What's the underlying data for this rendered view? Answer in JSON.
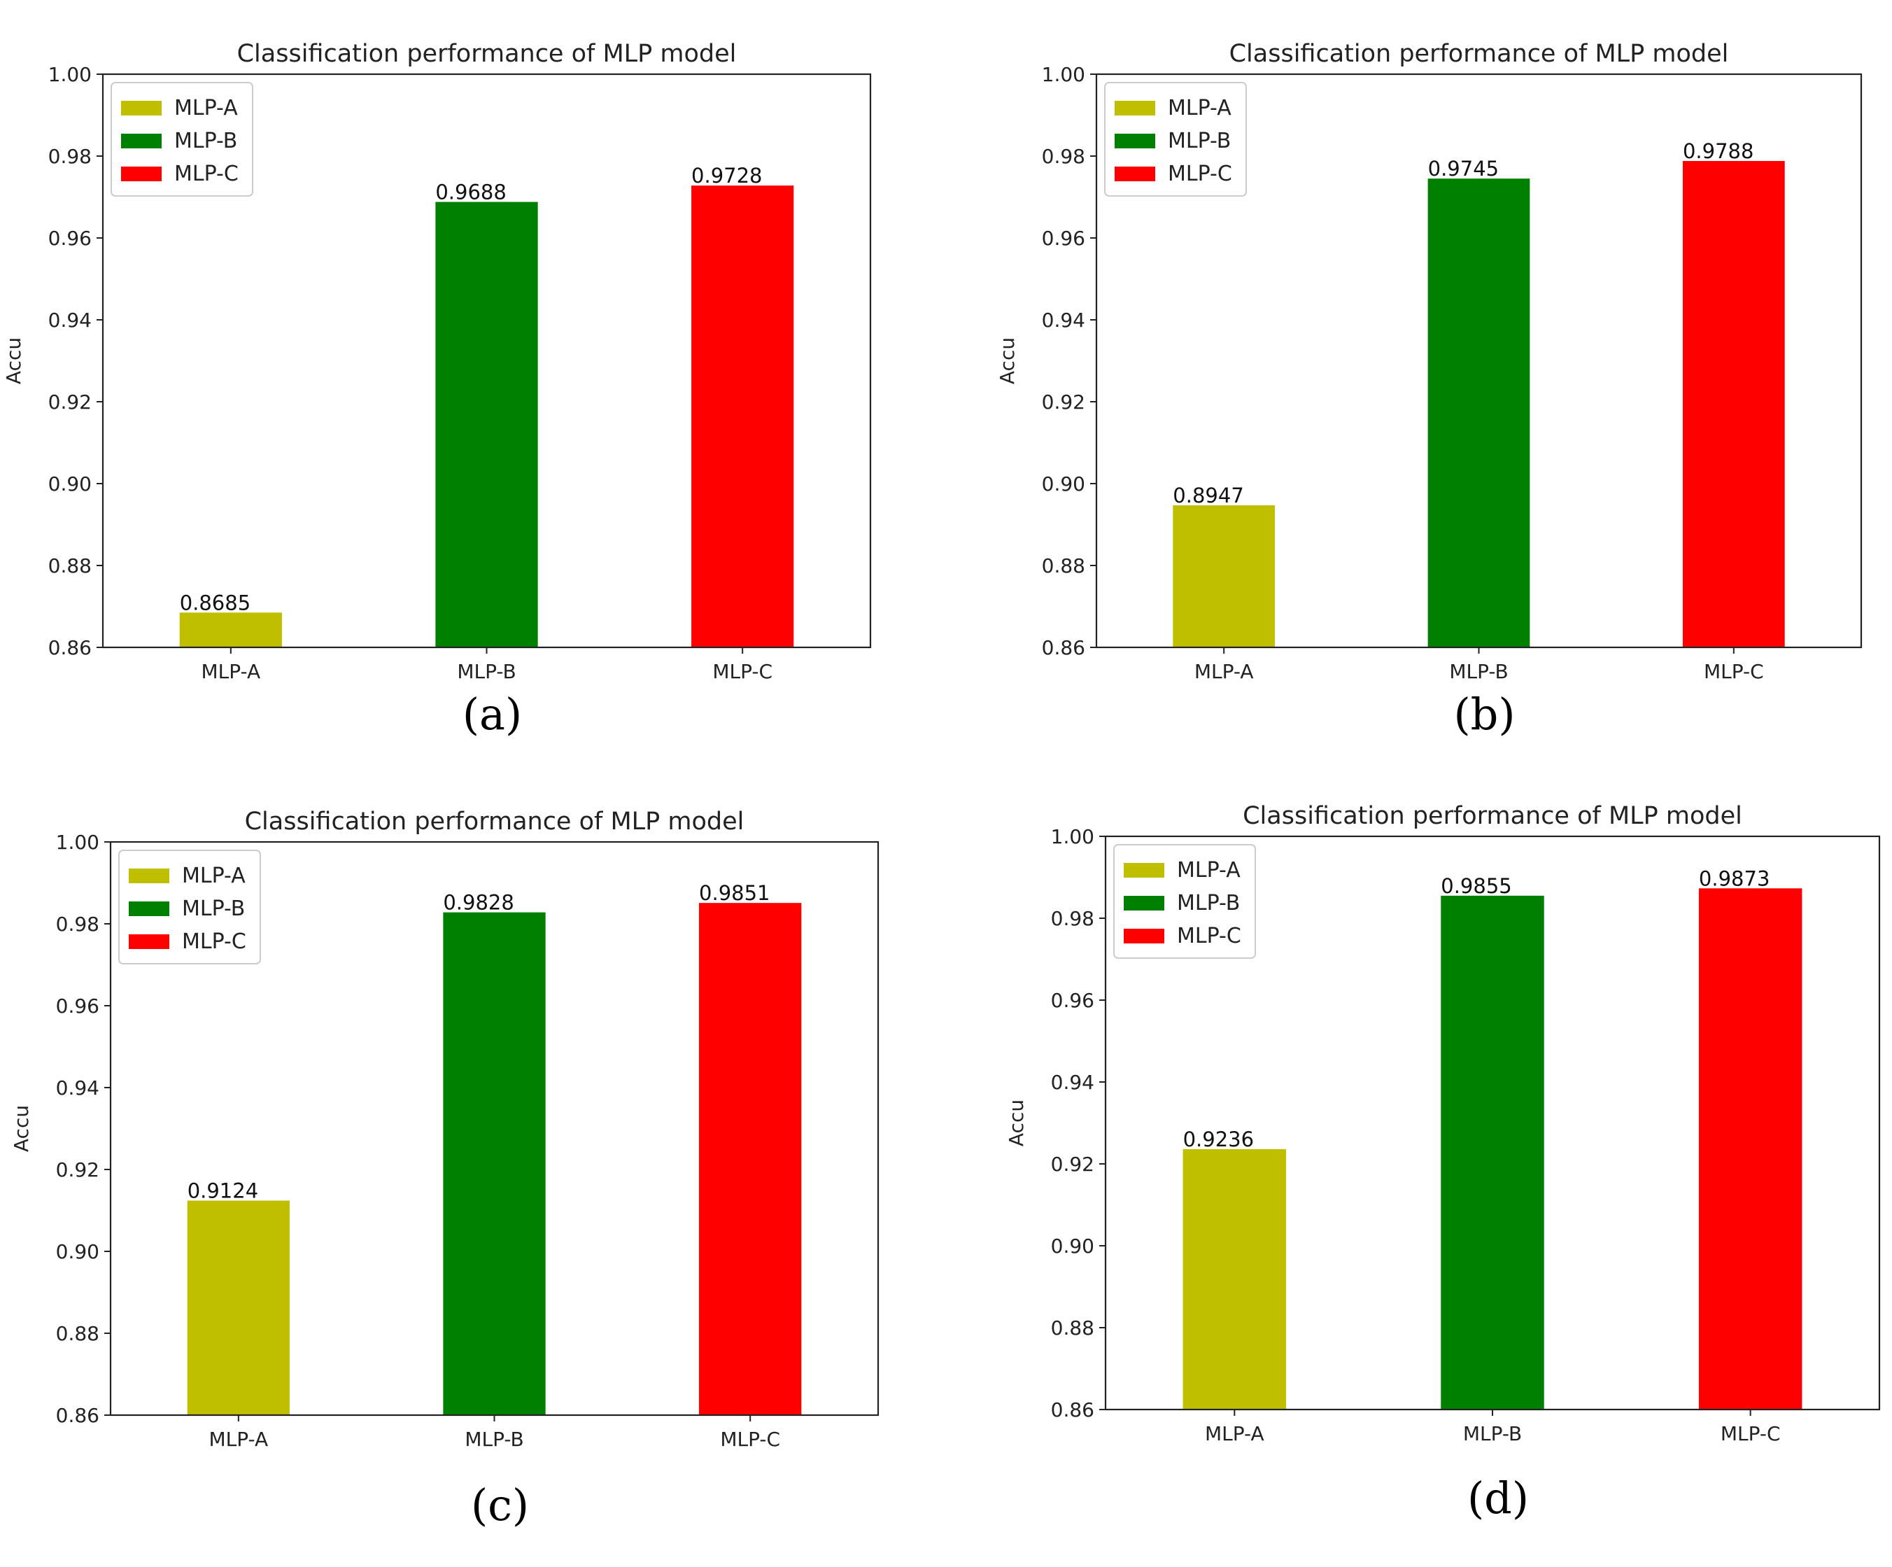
{
  "chart_data": [
    {
      "type": "bar",
      "panel_label": "(a)",
      "title": "Classification performance of MLP model",
      "xlabel": "",
      "ylabel": "Accu",
      "ylim": [
        0.86,
        1.0
      ],
      "yticks": [
        "0.86",
        "0.88",
        "0.90",
        "0.92",
        "0.94",
        "0.96",
        "0.98",
        "1.00"
      ],
      "categories": [
        "MLP-A",
        "MLP-B",
        "MLP-C"
      ],
      "values": [
        0.8685,
        0.9688,
        0.9728
      ],
      "value_labels": [
        "0.8685",
        "0.9688",
        "0.9728"
      ],
      "colors": [
        "#bfbf00",
        "#008000",
        "#ff0000"
      ],
      "legend": [
        "MLP-A",
        "MLP-B",
        "MLP-C"
      ],
      "legend_position": "top-left",
      "grid": false
    },
    {
      "type": "bar",
      "panel_label": "(b)",
      "title": "Classification performance of MLP model",
      "xlabel": "",
      "ylabel": "Accu",
      "ylim": [
        0.86,
        1.0
      ],
      "yticks": [
        "0.86",
        "0.88",
        "0.90",
        "0.92",
        "0.94",
        "0.96",
        "0.98",
        "1.00"
      ],
      "categories": [
        "MLP-A",
        "MLP-B",
        "MLP-C"
      ],
      "values": [
        0.8947,
        0.9745,
        0.9788
      ],
      "value_labels": [
        "0.8947",
        "0.9745",
        "0.9788"
      ],
      "colors": [
        "#bfbf00",
        "#008000",
        "#ff0000"
      ],
      "legend": [
        "MLP-A",
        "MLP-B",
        "MLP-C"
      ],
      "legend_position": "top-left",
      "grid": false
    },
    {
      "type": "bar",
      "panel_label": "(c)",
      "title": "Classification performance of MLP model",
      "xlabel": "",
      "ylabel": "Accu",
      "ylim": [
        0.86,
        1.0
      ],
      "yticks": [
        "0.86",
        "0.88",
        "0.90",
        "0.92",
        "0.94",
        "0.96",
        "0.98",
        "1.00"
      ],
      "categories": [
        "MLP-A",
        "MLP-B",
        "MLP-C"
      ],
      "values": [
        0.9124,
        0.9828,
        0.9851
      ],
      "value_labels": [
        "0.9124",
        "0.9828",
        "0.9851"
      ],
      "colors": [
        "#bfbf00",
        "#008000",
        "#ff0000"
      ],
      "legend": [
        "MLP-A",
        "MLP-B",
        "MLP-C"
      ],
      "legend_position": "top-left",
      "grid": false
    },
    {
      "type": "bar",
      "panel_label": "(d)",
      "title": "Classification performance of MLP model",
      "xlabel": "",
      "ylabel": "Accu",
      "ylim": [
        0.86,
        1.0
      ],
      "yticks": [
        "0.86",
        "0.88",
        "0.90",
        "0.92",
        "0.94",
        "0.96",
        "0.98",
        "1.00"
      ],
      "categories": [
        "MLP-A",
        "MLP-B",
        "MLP-C"
      ],
      "values": [
        0.9236,
        0.9855,
        0.9873
      ],
      "value_labels": [
        "0.9236",
        "0.9855",
        "0.9873"
      ],
      "colors": [
        "#bfbf00",
        "#008000",
        "#ff0000"
      ],
      "legend": [
        "MLP-A",
        "MLP-B",
        "MLP-C"
      ],
      "legend_position": "top-left",
      "grid": false
    }
  ]
}
